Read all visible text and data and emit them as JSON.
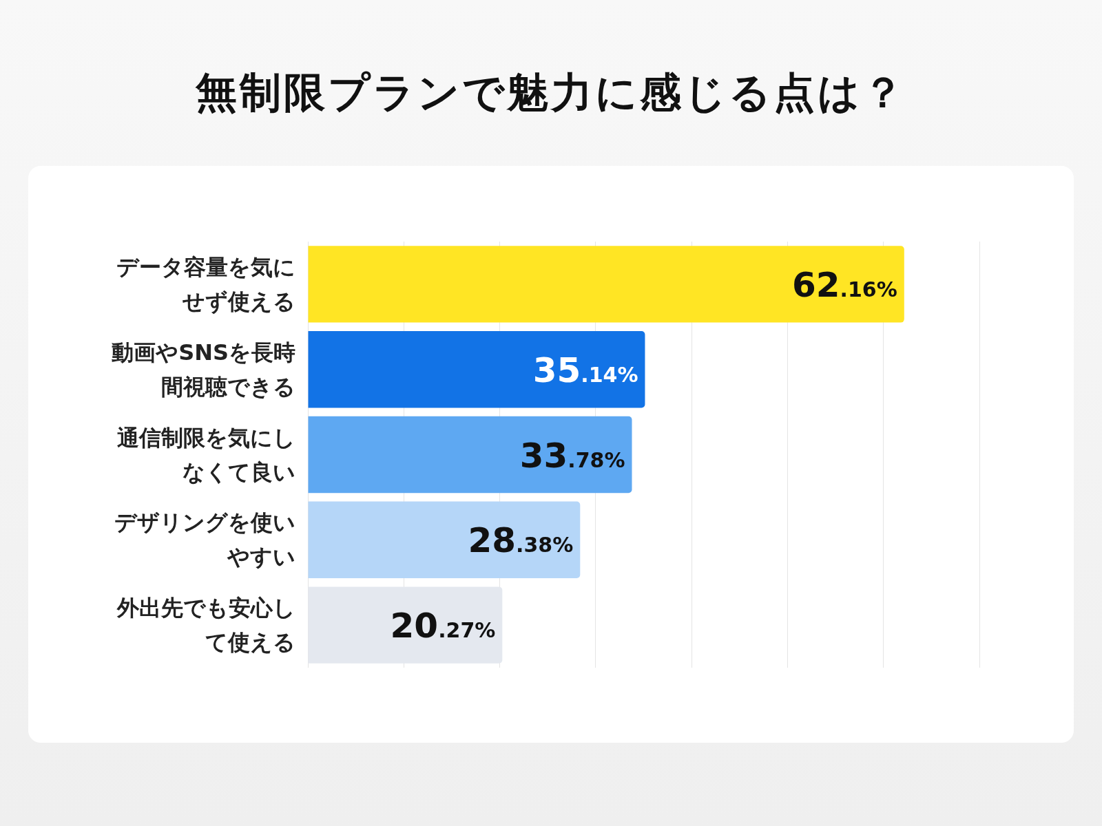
{
  "chart_data": {
    "type": "bar",
    "orientation": "horizontal",
    "title": "無制限プランで魅力に感じる点は？",
    "categories": [
      "データ容量を気にせず使える",
      "動画やSNSを長時間視聴できる",
      "通信制限を気にしなくて良い",
      "デザリングを使いやすい",
      "外出先でも安心して使える"
    ],
    "values": [
      62.16,
      35.14,
      33.78,
      28.38,
      20.27
    ],
    "colors": [
      "#ffe524",
      "#1273e6",
      "#5ea8f2",
      "#b5d6f8",
      "#e4e8ef"
    ],
    "value_labels": [
      "62.16%",
      "35.14%",
      "33.78%",
      "28.38%",
      "20.27%"
    ],
    "xlim": [
      0,
      70
    ],
    "xticks": [
      {
        "value": 0,
        "label": null
      },
      {
        "value": 10,
        "label": null
      },
      {
        "value": 20,
        "label": null
      },
      {
        "value": 30,
        "label": null
      },
      {
        "value": 40,
        "label": null
      },
      {
        "value": 50,
        "label": null
      },
      {
        "value": 60,
        "label": null
      },
      {
        "value": 70,
        "label": null
      }
    ],
    "grid": "x",
    "tick_labels": "y",
    "legend": false
  }
}
